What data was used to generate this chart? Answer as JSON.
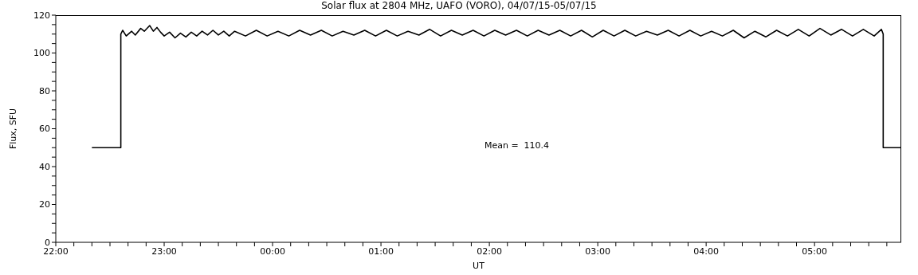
{
  "chart_data": {
    "type": "line",
    "title": "Solar flux at 2804 MHz, UAFO (VORO),  04/07/15-05/07/15",
    "xlabel": "UT",
    "ylabel": "Flux, SFU",
    "annotations": [
      "Mean =  110.4"
    ],
    "xlim": [
      "--07-04T22:00",
      "--07-05T05:48"
    ],
    "ylim": [
      0,
      120
    ],
    "xticks": [
      {
        "value": "--07-04T22:00",
        "label": "22:00"
      },
      {
        "value": "--07-04T22:10",
        "label": null
      },
      {
        "value": "--07-04T22:20",
        "label": null
      },
      {
        "value": "--07-04T22:30",
        "label": null
      },
      {
        "value": "--07-04T22:40",
        "label": null
      },
      {
        "value": "--07-04T22:50",
        "label": null
      },
      {
        "value": "--07-04T23:00",
        "label": "23:00"
      },
      {
        "value": "--07-04T23:10",
        "label": null
      },
      {
        "value": "--07-04T23:20",
        "label": null
      },
      {
        "value": "--07-04T23:30",
        "label": null
      },
      {
        "value": "--07-04T23:40",
        "label": null
      },
      {
        "value": "--07-04T23:50",
        "label": null
      },
      {
        "value": "--07-05T00:00",
        "label": "00:00"
      },
      {
        "value": "--07-05T00:10",
        "label": null
      },
      {
        "value": "--07-05T00:20",
        "label": null
      },
      {
        "value": "--07-05T00:30",
        "label": null
      },
      {
        "value": "--07-05T00:40",
        "label": null
      },
      {
        "value": "--07-05T00:50",
        "label": null
      },
      {
        "value": "--07-05T01:00",
        "label": "01:00"
      },
      {
        "value": "--07-05T01:10",
        "label": null
      },
      {
        "value": "--07-05T01:20",
        "label": null
      },
      {
        "value": "--07-05T01:30",
        "label": null
      },
      {
        "value": "--07-05T01:40",
        "label": null
      },
      {
        "value": "--07-05T01:50",
        "label": null
      },
      {
        "value": "--07-05T02:00",
        "label": "02:00"
      },
      {
        "value": "--07-05T02:10",
        "label": null
      },
      {
        "value": "--07-05T02:20",
        "label": null
      },
      {
        "value": "--07-05T02:30",
        "label": null
      },
      {
        "value": "--07-05T02:40",
        "label": null
      },
      {
        "value": "--07-05T02:50",
        "label": null
      },
      {
        "value": "--07-05T03:00",
        "label": "03:00"
      },
      {
        "value": "--07-05T03:10",
        "label": null
      },
      {
        "value": "--07-05T03:20",
        "label": null
      },
      {
        "value": "--07-05T03:30",
        "label": null
      },
      {
        "value": "--07-05T03:40",
        "label": null
      },
      {
        "value": "--07-05T03:50",
        "label": null
      },
      {
        "value": "--07-05T04:00",
        "label": "04:00"
      },
      {
        "value": "--07-05T04:10",
        "label": null
      },
      {
        "value": "--07-05T04:20",
        "label": null
      },
      {
        "value": "--07-05T04:30",
        "label": null
      },
      {
        "value": "--07-05T04:40",
        "label": null
      },
      {
        "value": "--07-05T04:50",
        "label": null
      },
      {
        "value": "--07-05T05:00",
        "label": "05:00"
      },
      {
        "value": "--07-05T05:10",
        "label": null
      },
      {
        "value": "--07-05T05:20",
        "label": null
      },
      {
        "value": "--07-05T05:30",
        "label": null
      },
      {
        "value": "--07-05T05:40",
        "label": null
      }
    ],
    "yticks": [
      0,
      {
        "value": 5,
        "label": null
      },
      {
        "value": 10,
        "label": null
      },
      {
        "value": 15,
        "label": null
      },
      20,
      {
        "value": 25,
        "label": null
      },
      {
        "value": 30,
        "label": null
      },
      {
        "value": 35,
        "label": null
      },
      40,
      {
        "value": 45,
        "label": null
      },
      {
        "value": 50,
        "label": null
      },
      {
        "value": 55,
        "label": null
      },
      60,
      {
        "value": 65,
        "label": null
      },
      {
        "value": 70,
        "label": null
      },
      {
        "value": 75,
        "label": null
      },
      80,
      {
        "value": 85,
        "label": null
      },
      {
        "value": 90,
        "label": null
      },
      {
        "value": 95,
        "label": null
      },
      100,
      {
        "value": 105,
        "label": null
      },
      {
        "value": 110,
        "label": null
      },
      {
        "value": 115,
        "label": null
      },
      120
    ],
    "series": [
      {
        "color": "#000000",
        "x": [
          "--07-04T22:20",
          "--07-04T22:36",
          "--07-04T22:36",
          "--07-04T22:37",
          "--07-04T22:39",
          "--07-04T22:42",
          "--07-04T22:44",
          "--07-04T22:47",
          "--07-04T22:49",
          "--07-04T22:52",
          "--07-04T22:54",
          "--07-04T22:56",
          "--07-04T22:58",
          "--07-04T23:00",
          "--07-04T23:03",
          "--07-04T23:06",
          "--07-04T23:09",
          "--07-04T23:12",
          "--07-04T23:15",
          "--07-04T23:18",
          "--07-04T23:21",
          "--07-04T23:24",
          "--07-04T23:27",
          "--07-04T23:30",
          "--07-04T23:33",
          "--07-04T23:36",
          "--07-04T23:39",
          "--07-04T23:45",
          "--07-04T23:51",
          "--07-04T23:57",
          "--07-05T00:03",
          "--07-05T00:09",
          "--07-05T00:15",
          "--07-05T00:21",
          "--07-05T00:27",
          "--07-05T00:33",
          "--07-05T00:39",
          "--07-05T00:45",
          "--07-05T00:51",
          "--07-05T00:57",
          "--07-05T01:03",
          "--07-05T01:09",
          "--07-05T01:15",
          "--07-05T01:21",
          "--07-05T01:27",
          "--07-05T01:33",
          "--07-05T01:39",
          "--07-05T01:45",
          "--07-05T01:51",
          "--07-05T01:57",
          "--07-05T02:03",
          "--07-05T02:09",
          "--07-05T02:15",
          "--07-05T02:21",
          "--07-05T02:27",
          "--07-05T02:33",
          "--07-05T02:39",
          "--07-05T02:45",
          "--07-05T02:51",
          "--07-05T02:57",
          "--07-05T03:03",
          "--07-05T03:09",
          "--07-05T03:15",
          "--07-05T03:21",
          "--07-05T03:27",
          "--07-05T03:33",
          "--07-05T03:39",
          "--07-05T03:45",
          "--07-05T03:51",
          "--07-05T03:57",
          "--07-05T04:03",
          "--07-05T04:09",
          "--07-05T04:15",
          "--07-05T04:21",
          "--07-05T04:27",
          "--07-05T04:33",
          "--07-05T04:39",
          "--07-05T04:45",
          "--07-05T04:51",
          "--07-05T04:57",
          "--07-05T05:03",
          "--07-05T05:09",
          "--07-05T05:15",
          "--07-05T05:21",
          "--07-05T05:27",
          "--07-05T05:33",
          "--07-05T05:37",
          "--07-05T05:38",
          "--07-05T05:38",
          "--07-05T05:48"
        ],
        "values": [
          50,
          50,
          110,
          112,
          109,
          111.5,
          109.5,
          113,
          111.5,
          114.5,
          111.5,
          113.5,
          111,
          109,
          111,
          108,
          110.5,
          108.5,
          111,
          109,
          111.5,
          109.5,
          112,
          109.5,
          111.5,
          109,
          111.5,
          109,
          112,
          109,
          111.5,
          109,
          112,
          109.5,
          112,
          109,
          111.5,
          109.5,
          112,
          109,
          112,
          109,
          111.5,
          109.5,
          112.5,
          109,
          112,
          109.5,
          112,
          109,
          112,
          109.5,
          112,
          109,
          112,
          109.5,
          112,
          109,
          112,
          108.5,
          112,
          109,
          112,
          109,
          111.5,
          109.5,
          112,
          109,
          112,
          109,
          111.5,
          109,
          112,
          108,
          111.5,
          108.5,
          112,
          109,
          112.5,
          109,
          113,
          109.5,
          112.5,
          109,
          112.5,
          109,
          112.5,
          110,
          50,
          50
        ]
      }
    ]
  }
}
